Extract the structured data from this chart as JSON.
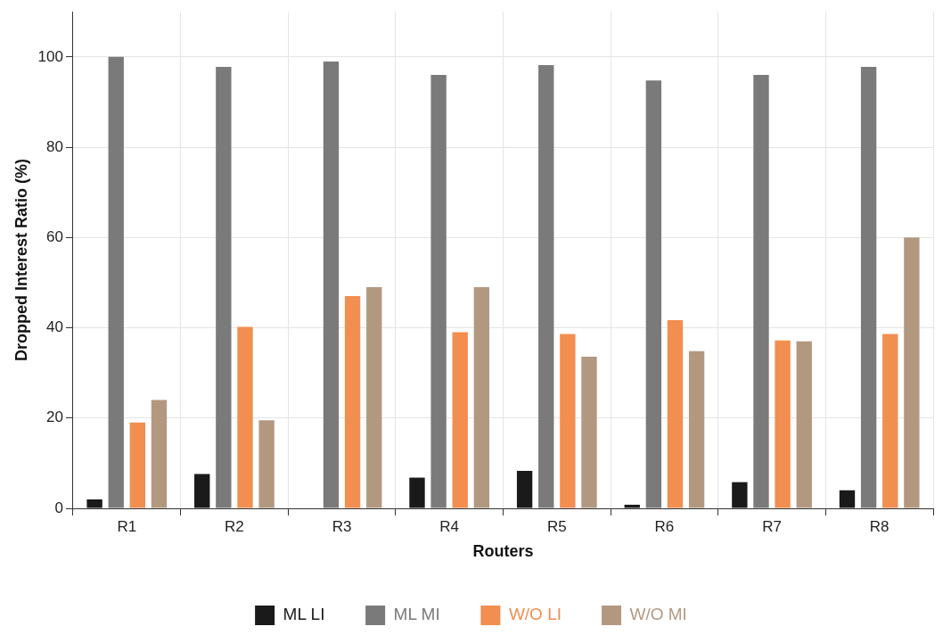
{
  "chart_data": {
    "type": "bar",
    "xlabel": "Routers",
    "ylabel": "Dropped Interest Ratio (%)",
    "categories": [
      "R1",
      "R2",
      "R3",
      "R4",
      "R5",
      "R6",
      "R7",
      "R8"
    ],
    "series": [
      {
        "name": "ML LI",
        "color": "#1a1a1a",
        "values": [
          2.0,
          7.6,
          0,
          6.8,
          8.3,
          0.8,
          5.8,
          4.0
        ]
      },
      {
        "name": "ML MI",
        "color": "#7a7a7a",
        "values": [
          100,
          97.8,
          99,
          96,
          98.2,
          94.8,
          96,
          97.8
        ]
      },
      {
        "name": "W/O LI",
        "color": "#f28e50",
        "values": [
          19,
          40.2,
          47,
          39,
          38.6,
          41.7,
          37.2,
          38.6
        ]
      },
      {
        "name": "W/O MI",
        "color": "#b39880",
        "values": [
          24,
          19.5,
          49,
          49,
          33.6,
          34.8,
          37,
          60
        ]
      }
    ],
    "ylim": [
      0,
      110
    ],
    "yticks": [
      0,
      20,
      40,
      60,
      80,
      100
    ],
    "grid": true,
    "legend": "bottom"
  }
}
